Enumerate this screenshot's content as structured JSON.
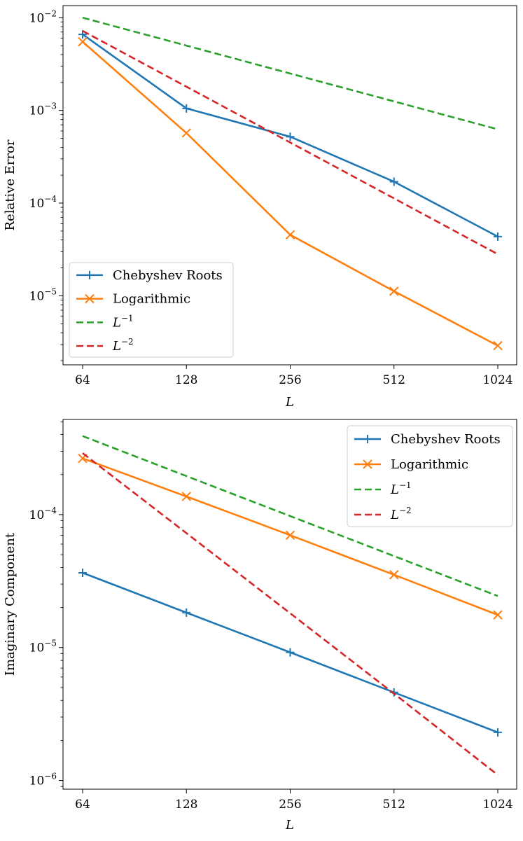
{
  "chart_data": [
    {
      "type": "line",
      "xscale": "log2",
      "yscale": "log10",
      "x": [
        64,
        128,
        256,
        512,
        1024
      ],
      "xticklabels": [
        "64",
        "128",
        "256",
        "512",
        "1024"
      ],
      "xlabel": "L",
      "ylabel": "Relative Error",
      "ylim": [
        1.8e-06,
        0.0135
      ],
      "yticks": [
        {
          "value": 0.01,
          "base": "10",
          "exp": "−2"
        },
        {
          "value": 0.001,
          "base": "10",
          "exp": "−3"
        },
        {
          "value": 0.0001,
          "base": "10",
          "exp": "−4"
        },
        {
          "value": 1e-05,
          "base": "10",
          "exp": "−5"
        }
      ],
      "legend_position": "lower-left",
      "series": [
        {
          "name": "Chebyshev Roots",
          "legend_label": "Chebyshev Roots",
          "color": "#1f77b4",
          "style": "solid",
          "marker": "plus",
          "values": [
            0.0066,
            0.00105,
            0.00052,
            0.00017,
            4.35e-05
          ]
        },
        {
          "name": "Logarithmic",
          "legend_label": "Logarithmic",
          "color": "#ff7f0e",
          "style": "solid",
          "marker": "x",
          "values": [
            0.0055,
            0.00057,
            4.55e-05,
            1.12e-05,
            2.9e-06
          ]
        },
        {
          "name": "L^-1",
          "legend_label": "L",
          "legend_exp": "−1",
          "color": "#2ca02c",
          "style": "dashed",
          "marker": "none",
          "values": [
            0.01,
            0.005,
            0.0025,
            0.00125,
            0.000625
          ]
        },
        {
          "name": "L^-2",
          "legend_label": "L",
          "legend_exp": "−2",
          "color": "#d62728",
          "style": "dashed",
          "marker": "none",
          "values": [
            0.0072,
            0.0018,
            0.00045,
            0.0001125,
            2.81e-05
          ]
        }
      ]
    },
    {
      "type": "line",
      "xscale": "log2",
      "yscale": "log10",
      "x": [
        64,
        128,
        256,
        512,
        1024
      ],
      "xticklabels": [
        "64",
        "128",
        "256",
        "512",
        "1024"
      ],
      "xlabel": "L",
      "ylabel": "Imaginary Component",
      "ylim": [
        8.6e-07,
        0.00052
      ],
      "yticks": [
        {
          "value": 0.0001,
          "base": "10",
          "exp": "−4"
        },
        {
          "value": 1e-05,
          "base": "10",
          "exp": "−5"
        },
        {
          "value": 1e-06,
          "base": "10",
          "exp": "−6"
        }
      ],
      "legend_position": "upper-right",
      "series": [
        {
          "name": "Chebyshev Roots",
          "legend_label": "Chebyshev Roots",
          "color": "#1f77b4",
          "style": "solid",
          "marker": "plus",
          "values": [
            3.65e-05,
            1.83e-05,
            9.2e-06,
            4.6e-06,
            2.3e-06
          ]
        },
        {
          "name": "Logarithmic",
          "legend_label": "Logarithmic",
          "color": "#ff7f0e",
          "style": "solid",
          "marker": "x",
          "values": [
            0.000265,
            0.000137,
            7e-05,
            3.53e-05,
            1.76e-05
          ]
        },
        {
          "name": "L^-1",
          "legend_label": "L",
          "legend_exp": "−1",
          "color": "#2ca02c",
          "style": "dashed",
          "marker": "none",
          "values": [
            0.00039,
            0.000195,
            9.75e-05,
            4.88e-05,
            2.44e-05
          ]
        },
        {
          "name": "L^-2",
          "legend_label": "L",
          "legend_exp": "−2",
          "color": "#d62728",
          "style": "dashed",
          "marker": "none",
          "values": [
            0.00029,
            7.25e-05,
            1.81e-05,
            4.5e-06,
            1.1e-06
          ]
        }
      ]
    }
  ]
}
